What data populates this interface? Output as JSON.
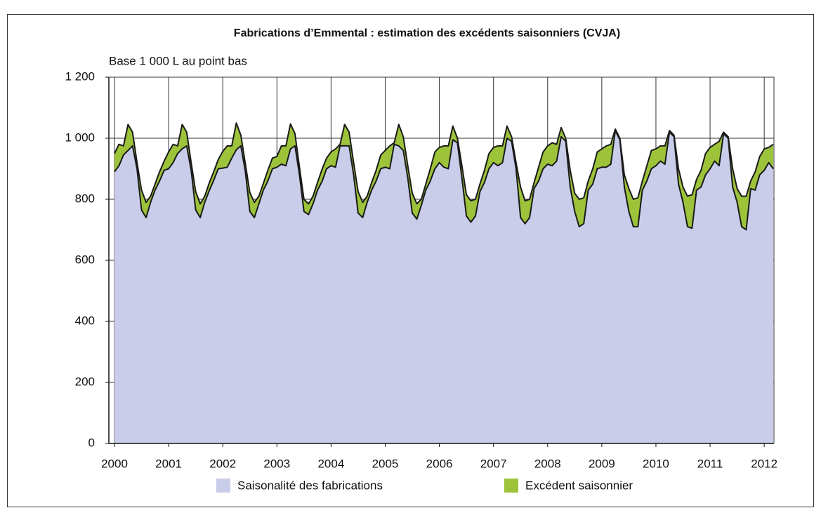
{
  "chart_data": {
    "type": "stacked_area",
    "title": "Fabrications d’Emmental : estimation des excédents saisonniers (CVJA)",
    "y_label": "Base 1 000 L au point bas",
    "categories": [
      "2000",
      null,
      null,
      null,
      null,
      null,
      null,
      null,
      null,
      null,
      null,
      null,
      "2001",
      null,
      null,
      null,
      null,
      null,
      null,
      null,
      null,
      null,
      null,
      null,
      "2002",
      null,
      null,
      null,
      null,
      null,
      null,
      null,
      null,
      null,
      null,
      null,
      "2003",
      null,
      null,
      null,
      null,
      null,
      null,
      null,
      null,
      null,
      null,
      null,
      "2004",
      null,
      null,
      null,
      null,
      null,
      null,
      null,
      null,
      null,
      null,
      null,
      "2005",
      null,
      null,
      null,
      null,
      null,
      null,
      null,
      null,
      null,
      null,
      null,
      "2006",
      null,
      null,
      null,
      null,
      null,
      null,
      null,
      null,
      null,
      null,
      null,
      "2007",
      null,
      null,
      null,
      null,
      null,
      null,
      null,
      null,
      null,
      null,
      null,
      "2008",
      null,
      null,
      null,
      null,
      null,
      null,
      null,
      null,
      null,
      null,
      null,
      "2009",
      null,
      null,
      null,
      null,
      null,
      null,
      null,
      null,
      null,
      null,
      null,
      "2010",
      null,
      null,
      null,
      null,
      null,
      null,
      null,
      null,
      null,
      null,
      null,
      "2011",
      null,
      null,
      null,
      null,
      null,
      null,
      null,
      null,
      null,
      null,
      null,
      "2012",
      null,
      null
    ],
    "series": [
      {
        "name": "Saisonalité des fabrications",
        "color": "#c9cde9",
        "values": [
          890,
          910,
          945,
          960,
          975,
          900,
          765,
          740,
          790,
          830,
          860,
          895,
          900,
          920,
          950,
          965,
          975,
          895,
          765,
          740,
          790,
          828,
          862,
          900,
          902,
          905,
          935,
          962,
          975,
          892,
          760,
          740,
          785,
          830,
          860,
          900,
          905,
          915,
          910,
          965,
          975,
          880,
          760,
          750,
          785,
          830,
          858,
          900,
          910,
          905,
          975,
          975,
          975,
          880,
          755,
          740,
          790,
          830,
          860,
          900,
          905,
          900,
          980,
          975,
          960,
          870,
          755,
          735,
          780,
          830,
          860,
          900,
          920,
          905,
          900,
          995,
          985,
          870,
          745,
          725,
          745,
          825,
          855,
          900,
          920,
          910,
          920,
          1000,
          990,
          900,
          740,
          720,
          740,
          835,
          860,
          900,
          915,
          910,
          925,
          1005,
          990,
          840,
          760,
          710,
          720,
          830,
          850,
          900,
          905,
          905,
          915,
          1025,
          995,
          840,
          760,
          710,
          710,
          830,
          860,
          900,
          910,
          925,
          915,
          1020,
          1005,
          850,
          790,
          710,
          705,
          830,
          840,
          880,
          900,
          925,
          910,
          1015,
          1000,
          840,
          790,
          710,
          700,
          835,
          830,
          880,
          895,
          920,
          900
        ]
      },
      {
        "name": "Excédent saisonnier",
        "color": "#9dc33b",
        "values": [
          60,
          70,
          30,
          85,
          45,
          20,
          65,
          50,
          20,
          20,
          30,
          30,
          55,
          60,
          25,
          80,
          45,
          25,
          60,
          45,
          20,
          25,
          28,
          30,
          55,
          70,
          40,
          88,
          35,
          25,
          62,
          50,
          25,
          22,
          35,
          35,
          35,
          60,
          65,
          82,
          40,
          25,
          40,
          35,
          25,
          25,
          40,
          35,
          45,
          60,
          5,
          70,
          45,
          40,
          70,
          50,
          20,
          25,
          35,
          45,
          55,
          75,
          5,
          70,
          45,
          40,
          65,
          50,
          20,
          20,
          40,
          55,
          50,
          70,
          75,
          45,
          15,
          40,
          70,
          70,
          55,
          25,
          40,
          50,
          50,
          65,
          55,
          40,
          15,
          20,
          100,
          75,
          60,
          20,
          45,
          55,
          60,
          75,
          55,
          30,
          10,
          55,
          60,
          90,
          85,
          30,
          50,
          55,
          60,
          70,
          65,
          5,
          5,
          40,
          75,
          90,
          95,
          30,
          50,
          60,
          55,
          50,
          60,
          5,
          5,
          50,
          50,
          100,
          110,
          35,
          55,
          70,
          70,
          55,
          80,
          5,
          5,
          60,
          45,
          100,
          110,
          25,
          60,
          60,
          70,
          50,
          80
        ]
      }
    ],
    "ylim": [
      0,
      1200
    ],
    "yticks": [
      0,
      200,
      400,
      600,
      800,
      {
        "value": 1000,
        "label": "1 000"
      },
      {
        "value": 1200,
        "label": "1 200"
      }
    ],
    "grid": true,
    "legend": "bottom"
  }
}
